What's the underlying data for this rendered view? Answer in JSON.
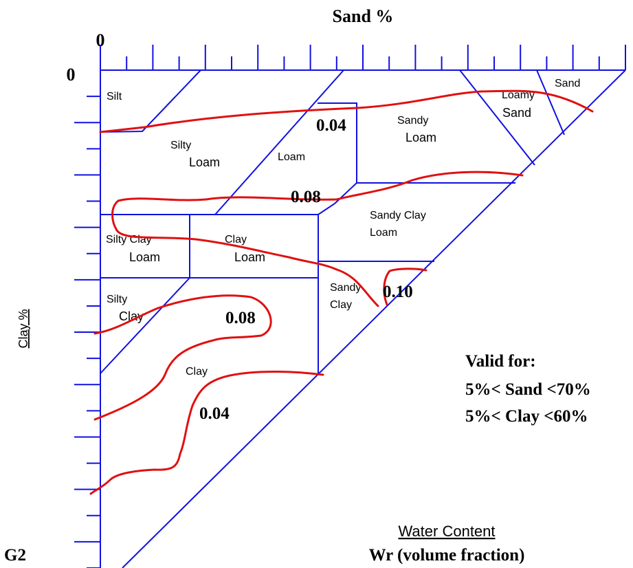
{
  "axes": {
    "top_title": "Sand %",
    "left_title": "Clay %",
    "origin_top": "0",
    "origin_left": "0"
  },
  "regions": {
    "silt": "Silt",
    "silty_loam_1": "Silty",
    "silty_loam_2": "Loam",
    "loam": "Loam",
    "sandy_loam_1": "Sandy",
    "sandy_loam_2": "Loam",
    "loamy_sand_1": "Loamy",
    "loamy_sand_2": "Sand",
    "sand": "Sand",
    "silty_clay_loam_1": "Silty Clay",
    "silty_clay_loam_2": "Loam",
    "clay_loam_1": "Clay",
    "clay_loam_2": "Loam",
    "sandy_clay_loam_1": "Sandy Clay",
    "sandy_clay_loam_2": "Loam",
    "sandy_clay_1": "Sandy",
    "sandy_clay_2": "Clay",
    "silty_clay_1": "Silty",
    "silty_clay_2": "Clay",
    "clay": "Clay"
  },
  "contour_labels": {
    "c1": "0.04",
    "c2": "0.08",
    "c3": "0.10",
    "c4": "0.08",
    "c5": "0.04"
  },
  "validity": {
    "title": "Valid for:",
    "sand": "5%< Sand <70%",
    "clay": "5%< Clay <60%"
  },
  "legend": {
    "line1": "Water Content",
    "line2": "Wr (volume fraction)"
  },
  "figure_id": "G2",
  "colors": {
    "boundary": "#1010e0",
    "contour": "#e01010"
  }
}
